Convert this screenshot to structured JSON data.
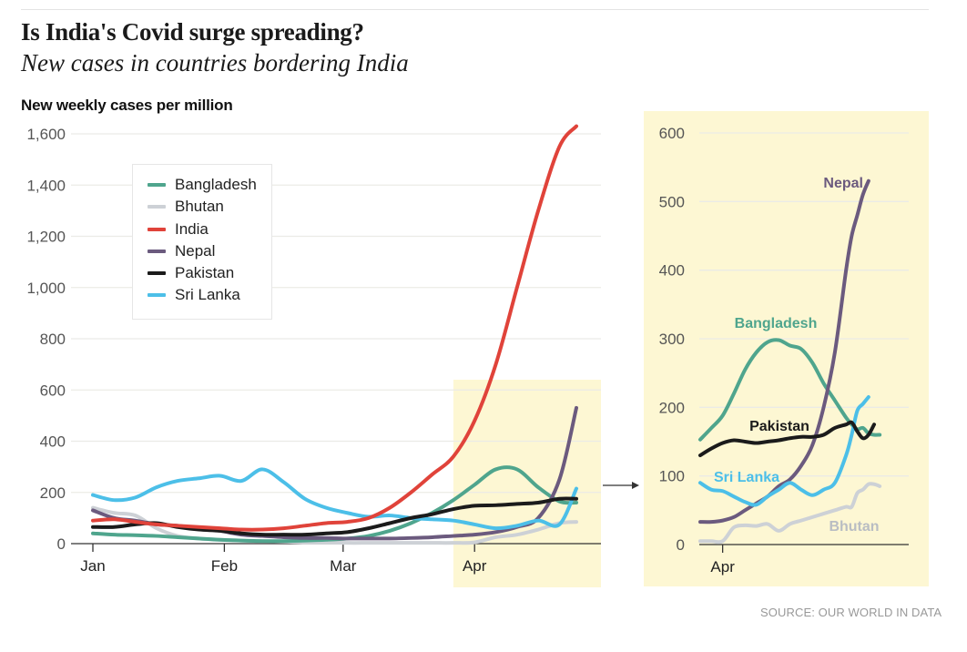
{
  "header": {
    "title": "Is India's Covid surge spreading?",
    "subtitle": "New cases in countries bordering India",
    "y_axis_label": "New weekly cases per million",
    "source": "SOURCE: OUR WORLD IN DATA"
  },
  "colors": {
    "Bangladesh": "#4fa58d",
    "Bhutan": "#cdd1d6",
    "India": "#e0433a",
    "Nepal": "#6b5a7e",
    "Pakistan": "#1b1b1b",
    "Sri Lanka": "#4cbfe8",
    "highlight": "#fdf7d3"
  },
  "chart_data": [
    {
      "id": "main",
      "type": "line",
      "title": "",
      "xlabel": "",
      "ylabel": "New weekly cases per million",
      "x_unit": "day of 2021 (Jan 1 = 0)",
      "xlim": [
        0,
        114
      ],
      "ylim": [
        0,
        1600
      ],
      "yticks": [
        0,
        200,
        400,
        600,
        800,
        1000,
        1200,
        1400,
        1600
      ],
      "ytick_labels": [
        "0",
        "200",
        "400",
        "600",
        "800",
        "1,000",
        "1,200",
        "1,400",
        "1,600"
      ],
      "xticks": [
        0,
        31,
        59,
        90
      ],
      "xtick_labels": [
        "Jan",
        "Feb",
        "Mar",
        "Apr"
      ],
      "grid": true,
      "legend": {
        "placement": "top-left",
        "entries": [
          "Bangladesh",
          "Bhutan",
          "India",
          "Nepal",
          "Pakistan",
          "Sri Lanka"
        ]
      },
      "highlight_region": {
        "x_from": 85,
        "x_to": 118,
        "y_from": 0,
        "y_to": 640
      },
      "x": [
        0,
        5,
        10,
        15,
        20,
        25,
        30,
        35,
        40,
        45,
        50,
        55,
        60,
        65,
        70,
        75,
        80,
        85,
        90,
        95,
        100,
        105,
        110,
        114
      ],
      "series": [
        {
          "name": "Bangladesh",
          "values": [
            40,
            35,
            33,
            30,
            25,
            20,
            15,
            12,
            10,
            10,
            12,
            15,
            20,
            30,
            50,
            80,
            120,
            170,
            230,
            290,
            290,
            220,
            165,
            160
          ]
        },
        {
          "name": "Bhutan",
          "values": [
            140,
            120,
            110,
            60,
            30,
            20,
            15,
            12,
            10,
            8,
            5,
            5,
            3,
            3,
            3,
            3,
            3,
            3,
            5,
            25,
            35,
            55,
            80,
            85
          ]
        },
        {
          "name": "India",
          "values": [
            90,
            95,
            85,
            75,
            70,
            65,
            60,
            55,
            55,
            60,
            70,
            80,
            85,
            100,
            140,
            200,
            270,
            340,
            480,
            700,
            1000,
            1300,
            1550,
            1630
          ]
        },
        {
          "name": "Nepal",
          "values": [
            130,
            100,
            90,
            75,
            70,
            60,
            50,
            35,
            30,
            25,
            22,
            22,
            20,
            20,
            20,
            22,
            25,
            30,
            35,
            45,
            65,
            100,
            250,
            530
          ]
        },
        {
          "name": "Pakistan",
          "values": [
            65,
            65,
            75,
            80,
            65,
            55,
            50,
            40,
            35,
            35,
            35,
            40,
            45,
            60,
            80,
            100,
            115,
            135,
            148,
            150,
            155,
            160,
            175,
            175
          ]
        },
        {
          "name": "Sri Lanka",
          "values": [
            190,
            170,
            180,
            220,
            245,
            255,
            265,
            245,
            290,
            240,
            175,
            140,
            120,
            105,
            110,
            100,
            95,
            90,
            75,
            60,
            70,
            90,
            75,
            215
          ]
        }
      ]
    },
    {
      "id": "inset",
      "type": "line",
      "title": "",
      "xlabel": "",
      "ylabel": "",
      "x_unit": "day of 2021 (Jan 1 = 0)",
      "xlim": [
        86,
        120
      ],
      "ylim": [
        0,
        600
      ],
      "yticks": [
        0,
        100,
        200,
        300,
        400,
        500,
        600
      ],
      "ytick_labels": [
        "0",
        "100",
        "200",
        "300",
        "400",
        "500",
        "600"
      ],
      "xticks": [
        90
      ],
      "xtick_labels": [
        "Apr"
      ],
      "grid": true,
      "legend": {
        "placement": "direct-labels",
        "entries": [
          "Nepal",
          "Bangladesh",
          "Pakistan",
          "Sri Lanka",
          "Bhutan"
        ]
      },
      "x": [
        86,
        88,
        90,
        92,
        94,
        96,
        98,
        100,
        102,
        104,
        106,
        108,
        110,
        112,
        113,
        114,
        115,
        116,
        117,
        118
      ],
      "series": [
        {
          "name": "Bangladesh",
          "values": [
            153,
            170,
            188,
            220,
            255,
            280,
            295,
            298,
            290,
            285,
            265,
            235,
            210,
            185,
            175,
            168,
            170,
            162,
            160,
            160
          ]
        },
        {
          "name": "Bhutan",
          "values": [
            5,
            5,
            5,
            25,
            28,
            27,
            30,
            20,
            30,
            35,
            40,
            45,
            50,
            55,
            55,
            75,
            80,
            88,
            88,
            85
          ]
        },
        {
          "name": "Nepal",
          "values": [
            33,
            33,
            35,
            40,
            50,
            60,
            70,
            85,
            95,
            115,
            145,
            200,
            280,
            400,
            450,
            480,
            510,
            530,
            null,
            null
          ]
        },
        {
          "name": "Pakistan",
          "values": [
            130,
            140,
            148,
            152,
            150,
            148,
            150,
            152,
            155,
            157,
            157,
            160,
            170,
            175,
            178,
            165,
            155,
            160,
            175,
            null
          ]
        },
        {
          "name": "Sri Lanka",
          "values": [
            90,
            80,
            78,
            70,
            62,
            58,
            70,
            80,
            90,
            80,
            72,
            80,
            90,
            130,
            160,
            195,
            205,
            215,
            null,
            null
          ]
        }
      ],
      "annotations": [
        {
          "text": "Nepal",
          "series": "Nepal"
        },
        {
          "text": "Bangladesh",
          "series": "Bangladesh"
        },
        {
          "text": "Pakistan",
          "series": "Pakistan"
        },
        {
          "text": "Sri Lanka",
          "series": "Sri Lanka"
        },
        {
          "text": "Bhutan",
          "series": "Bhutan"
        }
      ]
    }
  ]
}
